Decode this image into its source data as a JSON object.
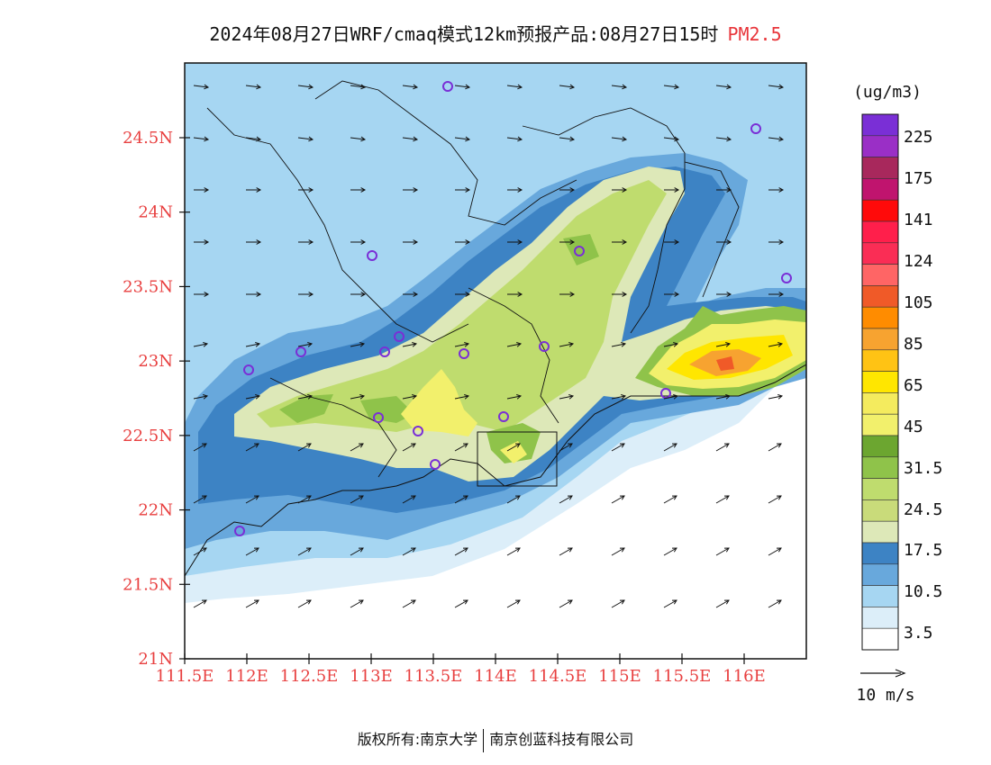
{
  "title": {
    "main": "2024年08月27日WRF/cmaq模式12km预报产品:08月27日15时",
    "pollutant": "PM2.5"
  },
  "axes": {
    "lat_ticks": [
      "24.5N",
      "24N",
      "23.5N",
      "23N",
      "22.5N",
      "22N",
      "21.5N",
      "21N"
    ],
    "lon_ticks": [
      "111.5E",
      "112E",
      "112.5E",
      "113E",
      "113.5E",
      "114E",
      "114.5E",
      "115E",
      "115.5E",
      "116E"
    ]
  },
  "legend": {
    "unit": "(ug/m3)",
    "labels": [
      "225",
      "175",
      "141",
      "124",
      "105",
      "85",
      "65",
      "45",
      "31.5",
      "24.5",
      "17.5",
      "10.5",
      "3.5"
    ],
    "colors": [
      "#7a2fd6",
      "#9a2fc6",
      "#a8285c",
      "#c0146e",
      "#ff0a0a",
      "#ff1f4b",
      "#fa2d55",
      "#ff6565",
      "#f05a28",
      "#ff8c00",
      "#f7a330",
      "#ffc314",
      "#ffe600",
      "#f4eb5e",
      "#f2f06c",
      "#6ca630",
      "#8fc34a",
      "#bfdc6e",
      "#c9db7a",
      "#dde8b8",
      "#3d83c4",
      "#68a8dc",
      "#a6d6f2",
      "#dceef9",
      "#ffffff"
    ]
  },
  "wind_scale": {
    "label": "10 m/s"
  },
  "footer": {
    "copyright": "版权所有:南京大学",
    "company": "南京创蓝科技有限公司"
  }
}
